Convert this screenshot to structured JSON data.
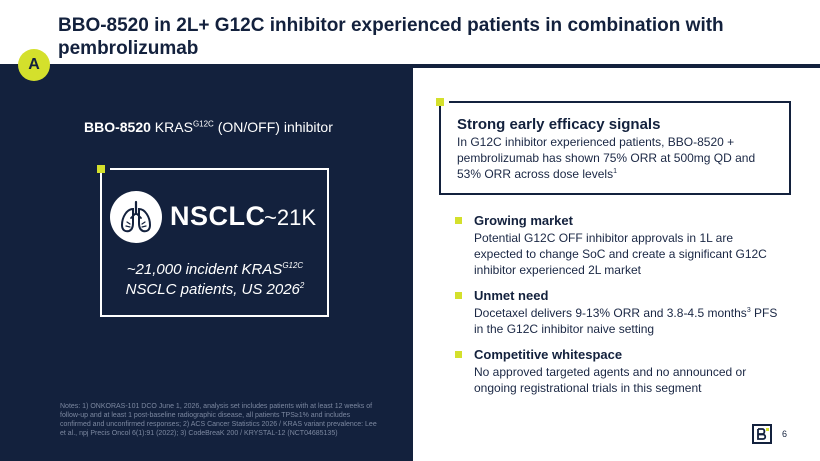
{
  "header": {
    "title": "BBO-8520 in 2L+ G12C inhibitor experienced patients in combination with pembrolizumab",
    "badge": "A"
  },
  "left": {
    "subtitle_bold": "BBO-8520",
    "subtitle_kras": " KRAS",
    "subtitle_sup": "G12C",
    "subtitle_rest": " (ON/OFF) inhibitor",
    "nsclc_word": "NSCLC",
    "nsclc_count": "~21K",
    "incidence_line1": "~21,000 incident KRAS",
    "incidence_sup1": "G12C",
    "incidence_line2": "NSCLC patients, US 2026",
    "incidence_sup2": "2",
    "notes": "Notes: 1) ONKORAS-101 DCO June 1, 2026, analysis set includes patients with at least 12 weeks of follow-up and at least 1 post-baseline radiographic disease, all patients TPS≥1% and includes confirmed and unconfirmed responses; 2) ACS Cancer Statistics 2026 / KRAS variant prevalence: Lee et al., npj Precis Oncol 6(1):91 (2022); 3) CodeBreaK 200 / KRYSTAL-12 (NCT04685135)"
  },
  "efficacy": {
    "heading": "Strong early efficacy signals",
    "body": "In G12C inhibitor experienced patients, BBO-8520 + pembrolizumab has shown 75% ORR at 500mg QD and 53% ORR across dose levels",
    "sup": "1"
  },
  "bullets": [
    {
      "heading": "Growing market",
      "body": "Potential G12C OFF inhibitor approvals in 1L are expected to change SoC and create a significant G12C inhibitor experienced 2L market",
      "sup": ""
    },
    {
      "heading": "Unmet need",
      "body_pre": "Docetaxel delivers 9-13% ORR and 3.8-4.5 months",
      "sup": "3",
      "body_post": " PFS in the G12C inhibitor naive setting"
    },
    {
      "heading": "Competitive whitespace",
      "body": "No approved targeted agents and no announced or ongoing registrational trials in this segment",
      "sup": ""
    }
  ],
  "footer": {
    "page_number": "6",
    "logo_icon": "bridgebio-logo-icon"
  },
  "colors": {
    "navy": "#13213d",
    "accent": "#d4e02c"
  }
}
